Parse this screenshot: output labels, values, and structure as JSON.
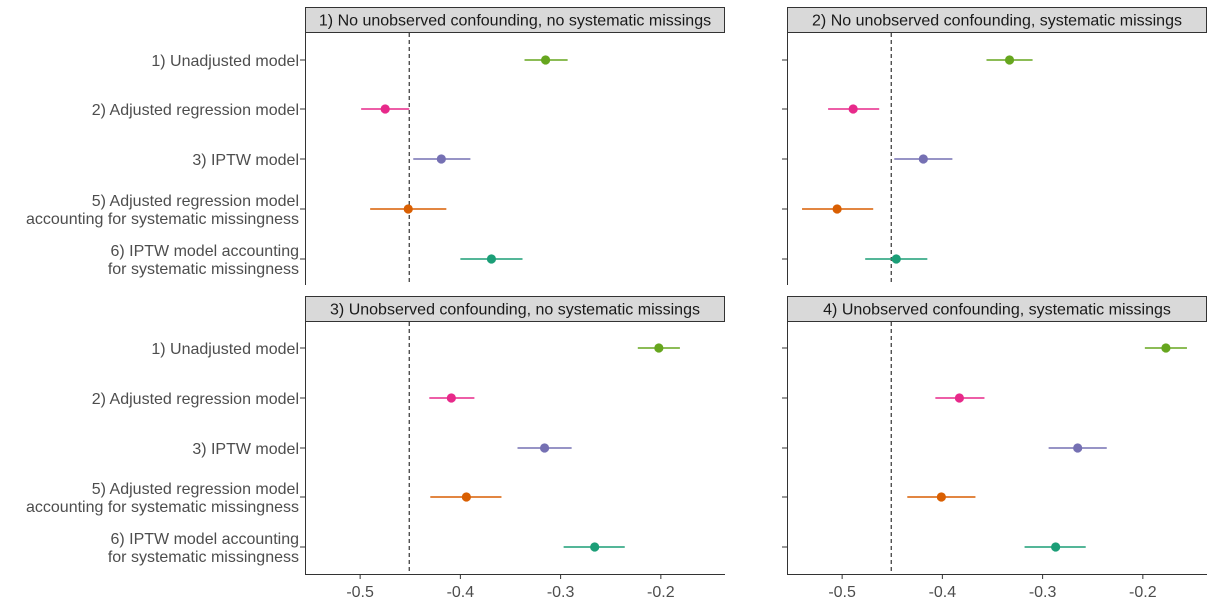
{
  "chart_data": {
    "type": "scatter",
    "subtype": "forest-plot",
    "panels": [
      {
        "title": "1) No unobserved confounding, no systematic missings",
        "points": [
          {
            "category": "1) Unadjusted model",
            "estimate": -0.315,
            "lower": -0.336,
            "upper": -0.293
          },
          {
            "category": "2) Adjusted regression model",
            "estimate": -0.475,
            "lower": -0.499,
            "upper": -0.451
          },
          {
            "category": "3) IPTW model",
            "estimate": -0.419,
            "lower": -0.447,
            "upper": -0.39
          },
          {
            "category": "5) Adjusted regression model\naccounting for systematic missingness",
            "estimate": -0.452,
            "lower": -0.49,
            "upper": -0.414
          },
          {
            "category": "6) IPTW model accounting\nfor systematic missingness",
            "estimate": -0.369,
            "lower": -0.4,
            "upper": -0.338
          }
        ]
      },
      {
        "title": "2) No unobserved confounding, systematic missings",
        "points": [
          {
            "category": "1) Unadjusted model",
            "estimate": -0.333,
            "lower": -0.356,
            "upper": -0.31
          },
          {
            "category": "2) Adjusted regression model",
            "estimate": -0.489,
            "lower": -0.514,
            "upper": -0.463
          },
          {
            "category": "3) IPTW model",
            "estimate": -0.419,
            "lower": -0.448,
            "upper": -0.39
          },
          {
            "category": "5) Adjusted regression model\naccounting for systematic missingness",
            "estimate": -0.505,
            "lower": -0.54,
            "upper": -0.469
          },
          {
            "category": "6) IPTW model accounting\nfor systematic missingness",
            "estimate": -0.446,
            "lower": -0.477,
            "upper": -0.415
          }
        ]
      },
      {
        "title": "3) Unobserved confounding, no systematic missings",
        "points": [
          {
            "category": "1) Unadjusted model",
            "estimate": -0.202,
            "lower": -0.223,
            "upper": -0.181
          },
          {
            "category": "2) Adjusted regression model",
            "estimate": -0.409,
            "lower": -0.431,
            "upper": -0.386
          },
          {
            "category": "3) IPTW model",
            "estimate": -0.316,
            "lower": -0.343,
            "upper": -0.289
          },
          {
            "category": "5) Adjusted regression model\naccounting for systematic missingness",
            "estimate": -0.394,
            "lower": -0.43,
            "upper": -0.359
          },
          {
            "category": "6) IPTW model accounting\nfor systematic missingness",
            "estimate": -0.266,
            "lower": -0.297,
            "upper": -0.236
          }
        ]
      },
      {
        "title": "4) Unobserved confounding, systematic missings",
        "points": [
          {
            "category": "1) Unadjusted model",
            "estimate": -0.177,
            "lower": -0.198,
            "upper": -0.156
          },
          {
            "category": "2) Adjusted regression model",
            "estimate": -0.383,
            "lower": -0.407,
            "upper": -0.358
          },
          {
            "category": "3) IPTW model",
            "estimate": -0.265,
            "lower": -0.294,
            "upper": -0.236
          },
          {
            "category": "5) Adjusted regression model\naccounting for systematic missingness",
            "estimate": -0.401,
            "lower": -0.435,
            "upper": -0.367
          },
          {
            "category": "6) IPTW model accounting\nfor systematic missingness",
            "estimate": -0.287,
            "lower": -0.318,
            "upper": -0.257
          }
        ]
      }
    ],
    "colors": [
      "#66a61e",
      "#e7298a",
      "#7570b3",
      "#d95f02",
      "#1b9e77"
    ],
    "xlim": [
      -0.555,
      -0.136
    ],
    "xticks": [
      -0.5,
      -0.4,
      -0.3,
      -0.2
    ],
    "xtick_labels": [
      "-0.5",
      "-0.4",
      "-0.3",
      "-0.2"
    ],
    "reference_line": -0.451,
    "grid": false,
    "legend": "none",
    "xlabel": "",
    "ylabel": ""
  }
}
